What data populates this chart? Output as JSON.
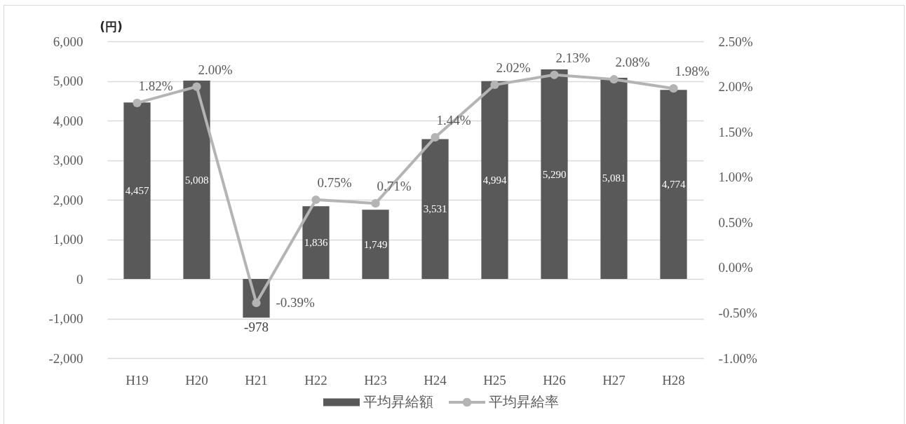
{
  "chart_data": {
    "type": "bar",
    "ylabel": "(円)",
    "categories": [
      "H19",
      "H20",
      "H21",
      "H22",
      "H23",
      "H24",
      "H25",
      "H26",
      "H27",
      "H28"
    ],
    "series": [
      {
        "name": "平均昇給額",
        "type": "bar",
        "color": "#595959",
        "values": [
          4457,
          5008,
          -978,
          1836,
          1749,
          3531,
          4994,
          5290,
          5081,
          4774
        ],
        "value_labels": [
          "4,457",
          "5,008",
          "-978",
          "1,836",
          "1,749",
          "3,531",
          "4,994",
          "5,290",
          "5,081",
          "4,774"
        ]
      },
      {
        "name": "平均昇給率",
        "type": "line",
        "axis": "y2",
        "color": "#b4b4b4",
        "values": [
          1.82,
          2.0,
          -0.39,
          0.75,
          0.71,
          1.44,
          2.02,
          2.13,
          2.08,
          1.98
        ],
        "value_labels": [
          "1.82%",
          "2.00%",
          "-0.39%",
          "0.75%",
          "0.71%",
          "1.44%",
          "2.02%",
          "2.13%",
          "2.08%",
          "1.98%"
        ]
      }
    ],
    "ylim": [
      -2000,
      6000
    ],
    "yticks": [
      {
        "value": -2000,
        "label": "-2,000"
      },
      {
        "value": -1000,
        "label": "-1,000"
      },
      0,
      {
        "value": 1000,
        "label": "1,000"
      },
      {
        "value": 2000,
        "label": "2,000"
      },
      {
        "value": 3000,
        "label": "3,000"
      },
      {
        "value": 4000,
        "label": "4,000"
      },
      {
        "value": 5000,
        "label": "5,000"
      },
      {
        "value": 6000,
        "label": "6,000"
      }
    ],
    "y2lim": [
      -1,
      2.5
    ],
    "y2ticks": [
      {
        "value": -1,
        "label": "-1.00%"
      },
      {
        "value": -0.5,
        "label": "-0.50%"
      },
      {
        "value": 0,
        "label": "0.00%"
      },
      {
        "value": 0.5,
        "label": "0.50%"
      },
      {
        "value": 1,
        "label": "1.00%"
      },
      {
        "value": 1.5,
        "label": "1.50%"
      },
      {
        "value": 2,
        "label": "2.00%"
      },
      {
        "value": 2.5,
        "label": "2.50%"
      }
    ],
    "grid": "y",
    "legend": "bottom",
    "marker": "circle"
  }
}
